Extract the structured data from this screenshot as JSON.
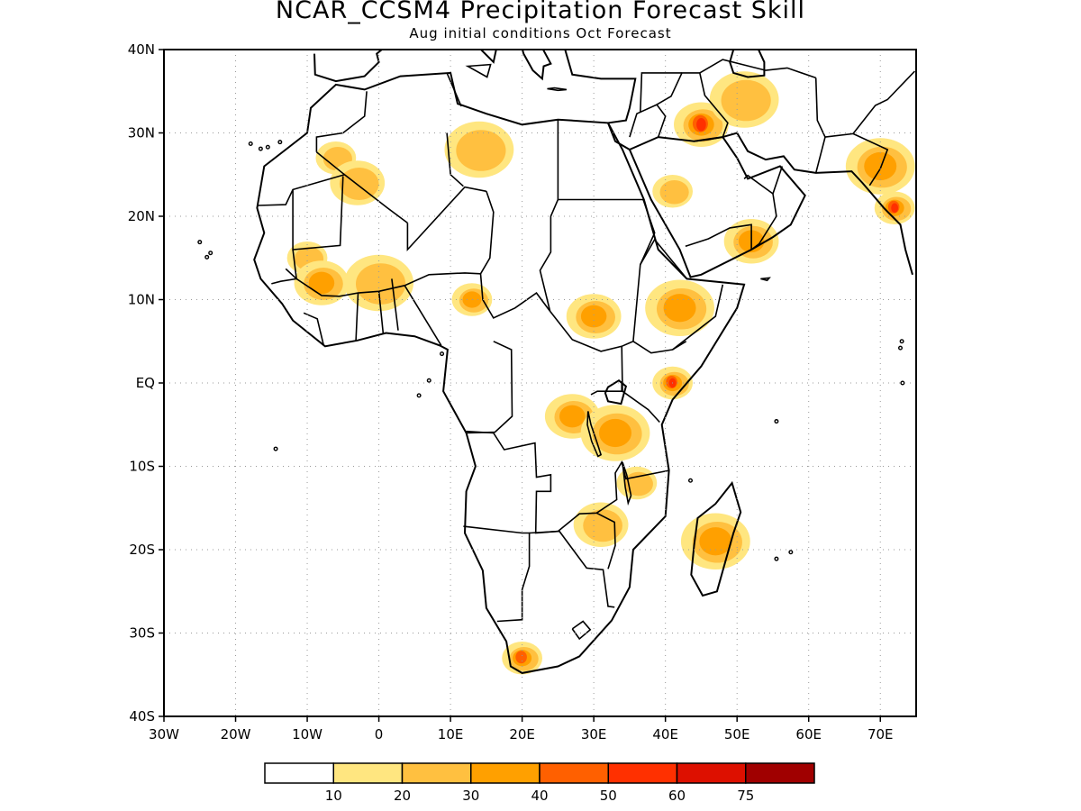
{
  "title": "NCAR_CCSM4 Precipitation Forecast Skill",
  "subtitle": "Aug initial conditions  Oct Forecast",
  "map": {
    "lon_range": [
      -30,
      75
    ],
    "lat_range": [
      -40,
      40
    ],
    "lat_labels": [
      "40N",
      "30N",
      "20N",
      "10N",
      "EQ",
      "10S",
      "20S",
      "30S",
      "40S"
    ],
    "lat_values": [
      40,
      30,
      20,
      10,
      0,
      -10,
      -20,
      -30,
      -40
    ],
    "lon_labels": [
      "30W",
      "20W",
      "10W",
      "0",
      "10E",
      "20E",
      "30E",
      "40E",
      "50E",
      "60E",
      "70E"
    ],
    "lon_values": [
      -30,
      -20,
      -10,
      0,
      10,
      20,
      30,
      40,
      50,
      60,
      70
    ],
    "grid": "dotted"
  },
  "colorbar": {
    "colors": [
      "#ffffff",
      "#ffe680",
      "#ffc040",
      "#ffa000",
      "#ff6000",
      "#ff3000",
      "#dd1000",
      "#a00000"
    ],
    "labels": [
      "10",
      "20",
      "30",
      "40",
      "50",
      "60",
      "75"
    ]
  },
  "skill_regions": [
    {
      "lon": -6,
      "lat": 27,
      "level": 2
    },
    {
      "lon": -3,
      "lat": 24,
      "level": 2
    },
    {
      "lon": 14,
      "lat": 28,
      "level": 2
    },
    {
      "lon": -10,
      "lat": 15,
      "level": 2
    },
    {
      "lon": -8,
      "lat": 12,
      "level": 3
    },
    {
      "lon": 0,
      "lat": 12,
      "level": 2
    },
    {
      "lon": 13,
      "lat": 10,
      "level": 3
    },
    {
      "lon": 30,
      "lat": 8,
      "level": 3
    },
    {
      "lon": 42,
      "lat": 9,
      "level": 3
    },
    {
      "lon": 41,
      "lat": 0,
      "level": 5
    },
    {
      "lon": 27,
      "lat": -4,
      "level": 3
    },
    {
      "lon": 33,
      "lat": -6,
      "level": 3
    },
    {
      "lon": 36,
      "lat": -12,
      "level": 2
    },
    {
      "lon": 31,
      "lat": -17,
      "level": 2
    },
    {
      "lon": 47,
      "lat": -19,
      "level": 3
    },
    {
      "lon": 20,
      "lat": -33,
      "level": 4
    },
    {
      "lon": 45,
      "lat": 31,
      "level": 5
    },
    {
      "lon": 51,
      "lat": 34,
      "level": 2
    },
    {
      "lon": 41,
      "lat": 23,
      "level": 2
    },
    {
      "lon": 52,
      "lat": 17,
      "level": 3
    },
    {
      "lon": 70,
      "lat": 26,
      "level": 3
    },
    {
      "lon": 72,
      "lat": 21,
      "level": 5
    }
  ]
}
